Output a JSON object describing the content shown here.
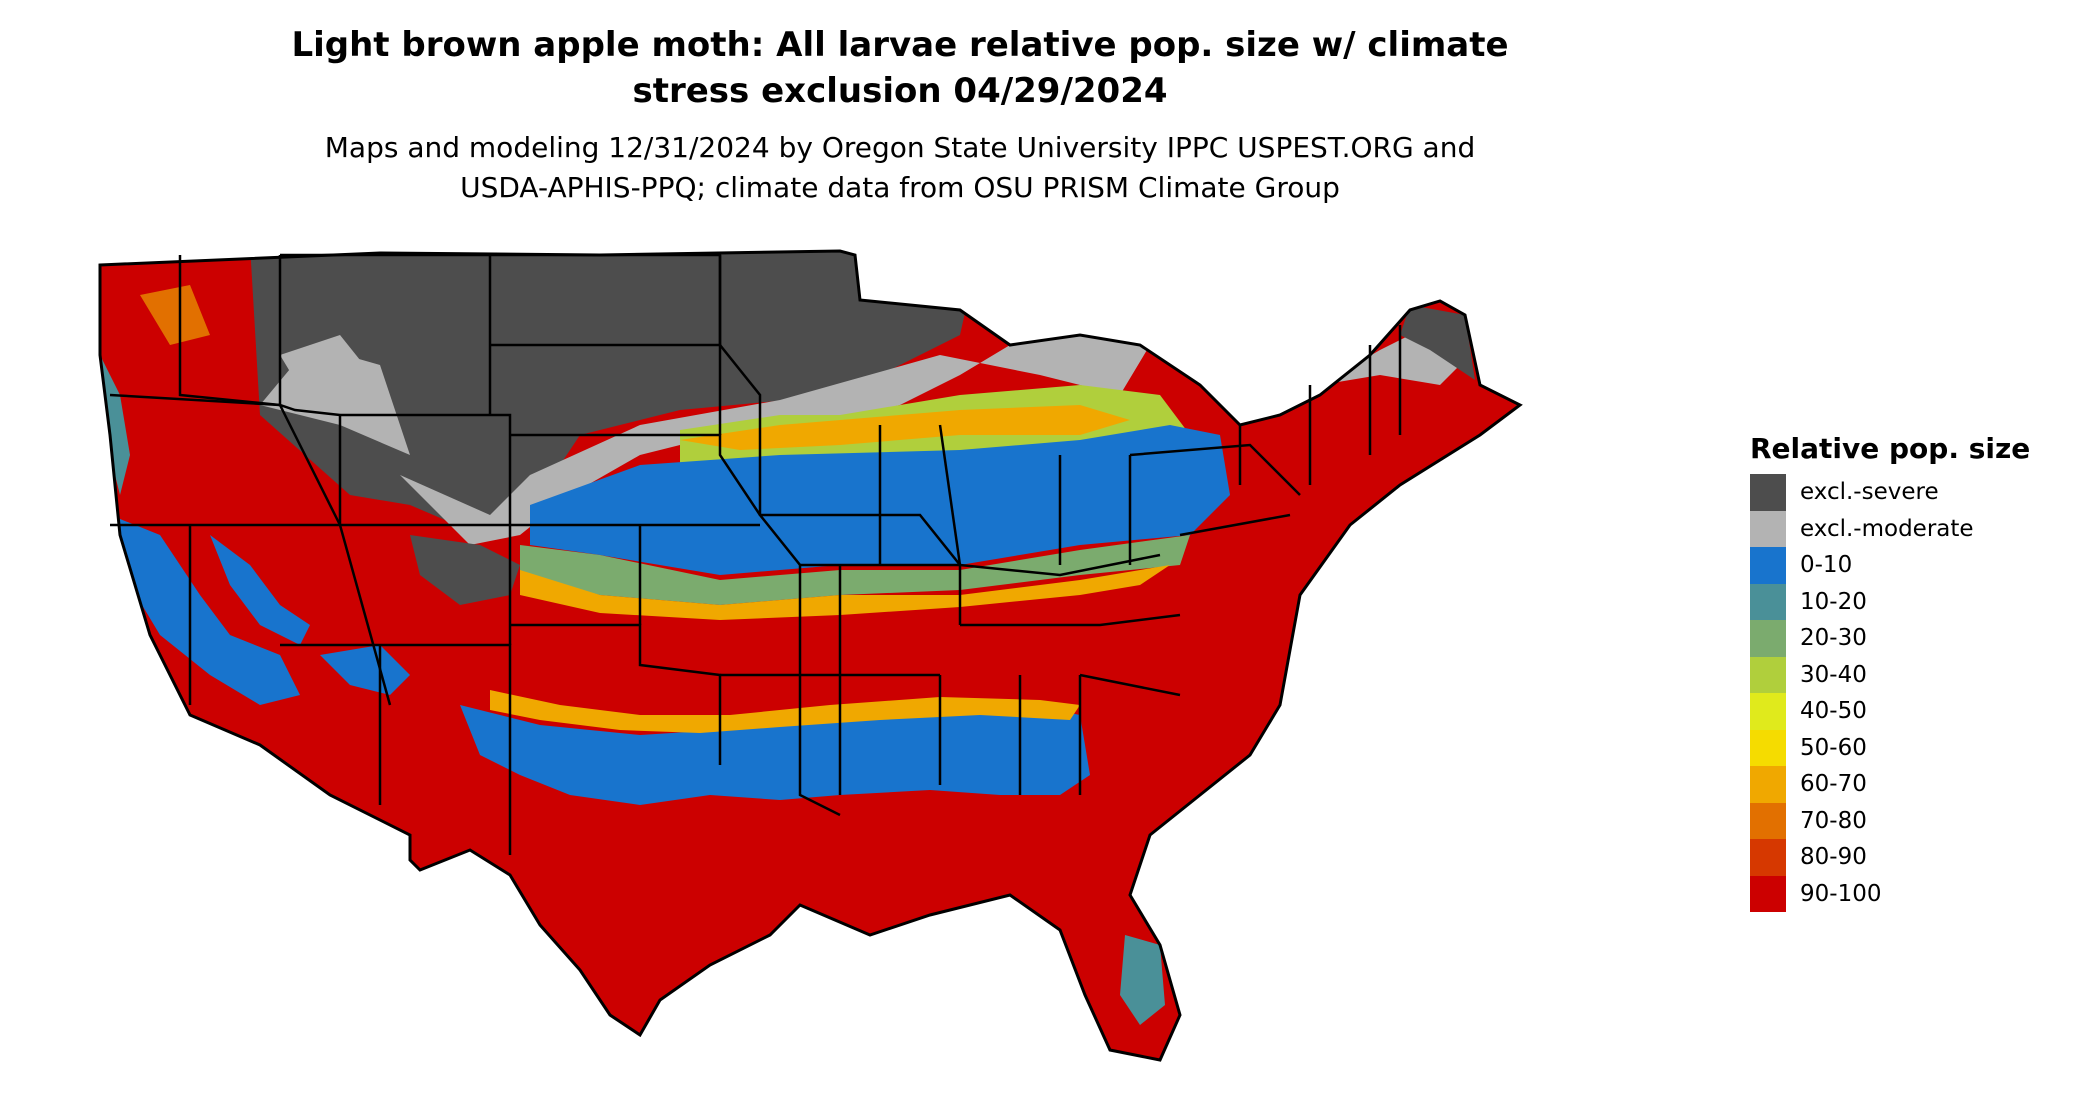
{
  "title_line1": "Light brown apple moth: All larvae relative pop. size w/ climate",
  "title_line2": "stress exclusion 04/29/2024",
  "subtitle_line1": "Maps and modeling 12/31/2024 by Oregon State University IPPC USPEST.ORG and",
  "subtitle_line2": "USDA-APHIS-PPQ; climate data from OSU PRISM Climate Group",
  "legend": {
    "title": "Relative pop. size",
    "items": [
      {
        "label": "excl.-severe",
        "color": "#4d4d4d"
      },
      {
        "label": "excl.-moderate",
        "color": "#b3b3b3"
      },
      {
        "label": "0-10",
        "color": "#1874cd"
      },
      {
        "label": "10-20",
        "color": "#4a9098"
      },
      {
        "label": "20-30",
        "color": "#7bab6e"
      },
      {
        "label": "30-40",
        "color": "#b0cf3c"
      },
      {
        "label": "40-50",
        "color": "#e0ea1c"
      },
      {
        "label": "50-60",
        "color": "#f5dc00"
      },
      {
        "label": "60-70",
        "color": "#f0a800"
      },
      {
        "label": "70-80",
        "color": "#e27000"
      },
      {
        "label": "80-90",
        "color": "#d63800"
      },
      {
        "label": "90-100",
        "color": "#cc0000"
      }
    ]
  }
}
